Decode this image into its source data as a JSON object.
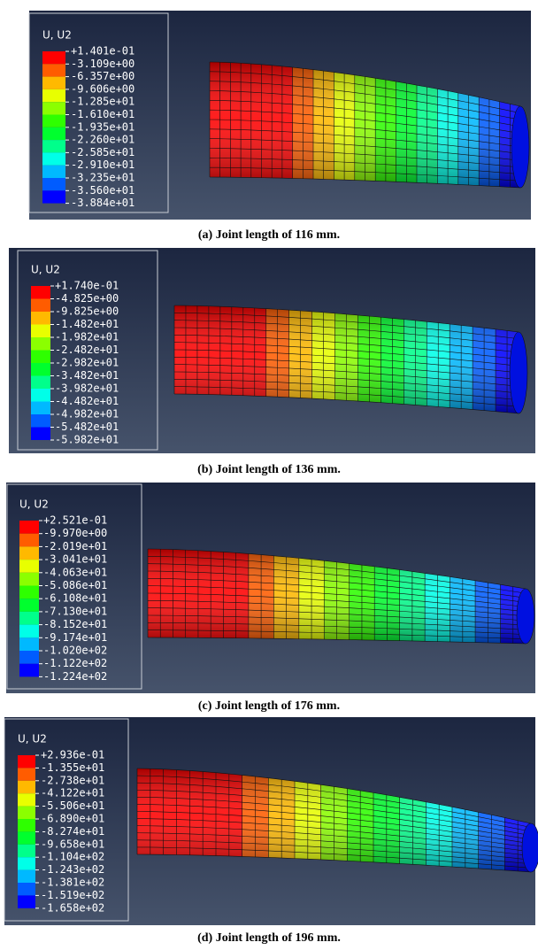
{
  "panels": [
    {
      "legend_title": "U, U2",
      "legend_labels": [
        "+1.401e-01",
        "-3.109e+00",
        "-6.357e+00",
        "-9.606e+00",
        "-1.285e+01",
        "-1.610e+01",
        "-1.935e+01",
        "-2.260e+01",
        "-2.585e+01",
        "-2.910e+01",
        "-3.235e+01",
        "-3.560e+01",
        "-3.884e+01"
      ],
      "caption": "(a) Joint length of 116 mm."
    },
    {
      "legend_title": "U, U2",
      "legend_labels": [
        "+1.740e-01",
        "-4.825e+00",
        "-9.825e+00",
        "-1.482e+01",
        "-1.982e+01",
        "-2.482e+01",
        "-2.982e+01",
        "-3.482e+01",
        "-3.982e+01",
        "-4.482e+01",
        "-4.982e+01",
        "-5.482e+01",
        "-5.982e+01"
      ],
      "caption": "(b) Joint length of 136 mm."
    },
    {
      "legend_title": "U, U2",
      "legend_labels": [
        "+2.521e-01",
        "-9.970e+00",
        "-2.019e+01",
        "-3.041e+01",
        "-4.063e+01",
        "-5.086e+01",
        "-6.108e+01",
        "-7.130e+01",
        "-8.152e+01",
        "-9.174e+01",
        "-1.020e+02",
        "-1.122e+02",
        "-1.224e+02"
      ],
      "caption": "(c) Joint length of 176 mm."
    },
    {
      "legend_title": "U, U2",
      "legend_labels": [
        "+2.936e-01",
        "-1.355e+01",
        "-2.738e+01",
        "-4.122e+01",
        "-5.506e+01",
        "-6.890e+01",
        "-8.274e+01",
        "-9.658e+01",
        "-1.104e+02",
        "-1.243e+02",
        "-1.381e+02",
        "-1.519e+02",
        "-1.658e+02"
      ],
      "caption": "(d) Joint length of 196 mm."
    }
  ]
}
